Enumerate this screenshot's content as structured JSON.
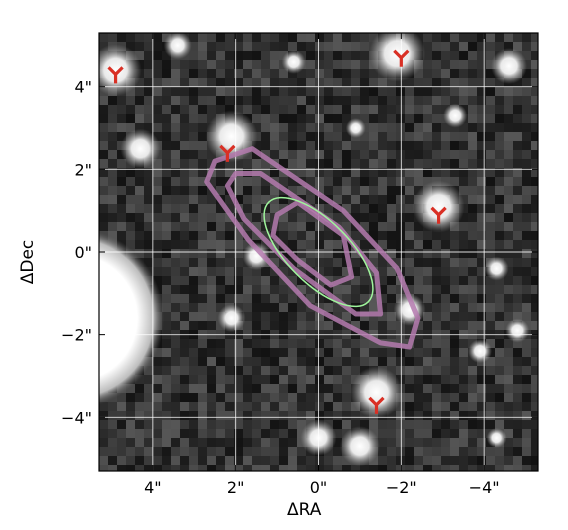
{
  "chart_data": {
    "type": "image",
    "xlabel": "ΔRA",
    "ylabel": "ΔDec",
    "xlim": [
      5.3,
      -5.3
    ],
    "ylim": [
      -5.3,
      5.3
    ],
    "x_ticks": [
      4,
      2,
      0,
      -2,
      -4
    ],
    "y_ticks": [
      4,
      2,
      0,
      -2,
      -4
    ],
    "x_tick_labels": [
      "4\"",
      "2\"",
      "0\"",
      "−2\"",
      "−4\""
    ],
    "y_tick_labels": [
      "4\"",
      "2\"",
      "0\"",
      "−2\"",
      "−4\""
    ],
    "grid": true,
    "background": "greyscale sky image",
    "colors": {
      "grid": "#ffffff",
      "contour": "#b47aae",
      "ellipse": "#9ff59c",
      "marker": "#d93025",
      "frame": "#000000"
    },
    "markers": [
      {
        "x": 4.9,
        "y": 4.3
      },
      {
        "x": 2.2,
        "y": 2.4
      },
      {
        "x": -2.0,
        "y": 4.7
      },
      {
        "x": -2.9,
        "y": 0.9
      },
      {
        "x": -1.4,
        "y": -3.7
      }
    ],
    "ellipse": {
      "x": 0,
      "y": 0,
      "major": 1.7,
      "minor": 0.75,
      "pa": 45
    },
    "contours": [
      [
        [
          2.5,
          2.2
        ],
        [
          1.6,
          2.5
        ],
        [
          -0.6,
          1.0
        ],
        [
          -1.9,
          -0.4
        ],
        [
          -2.4,
          -1.6
        ],
        [
          -2.2,
          -2.3
        ],
        [
          -1.5,
          -2.2
        ],
        [
          0.2,
          -1.3
        ],
        [
          1.7,
          0.3
        ],
        [
          2.7,
          1.7
        ]
      ],
      [
        [
          2.0,
          1.9
        ],
        [
          1.4,
          1.9
        ],
        [
          -0.5,
          0.6
        ],
        [
          -1.4,
          -0.5
        ],
        [
          -1.5,
          -1.5
        ],
        [
          -0.9,
          -1.5
        ],
        [
          0.6,
          -0.4
        ],
        [
          1.8,
          0.8
        ],
        [
          2.2,
          1.6
        ]
      ],
      [
        [
          1.0,
          0.9
        ],
        [
          0.5,
          1.2
        ],
        [
          -0.6,
          0.4
        ],
        [
          -0.8,
          -0.6
        ],
        [
          -0.3,
          -0.8
        ],
        [
          0.5,
          -0.2
        ],
        [
          1.1,
          0.4
        ]
      ]
    ]
  }
}
